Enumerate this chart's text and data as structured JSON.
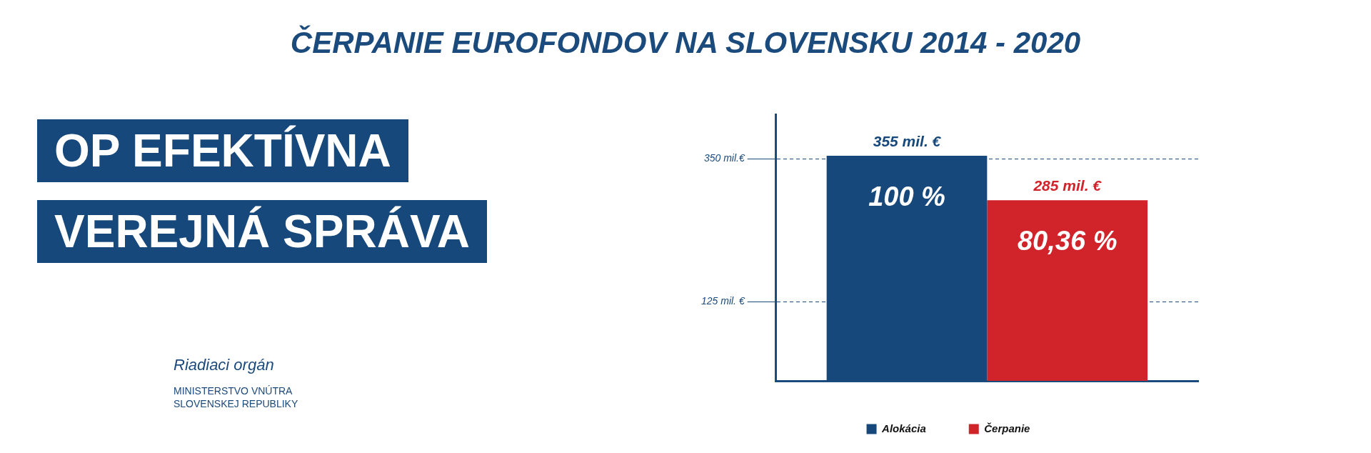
{
  "chart_data": {
    "type": "bar",
    "title": "ČERPANIE EUROFONDOV NA SLOVENSKU 2014 - 2020",
    "subtitle": "OP EFEKTÍVNA VEREJNÁ SPRÁVA",
    "categories": [
      null
    ],
    "series": [
      {
        "name": "Alokácia",
        "color": "#16487b",
        "values": [
          355
        ],
        "value_labels": [
          "355 mil. €"
        ]
      },
      {
        "name": "Čerpanie",
        "color": "#d0232a",
        "values": [
          285
        ],
        "value_labels": [
          "285 mil. €"
        ]
      }
    ],
    "ylim": [
      0,
      420
    ],
    "yticks": [
      {
        "value": 125,
        "label": "125 mil. €"
      },
      {
        "value": 350,
        "label": "350 mil.€"
      }
    ],
    "grid": "y",
    "line_style": "dashed",
    "legend": "bottom",
    "tick_labels": "y",
    "annotations": [
      {
        "text": "100 %",
        "y": 355
      },
      {
        "text": "80,36 %",
        "y": 285
      },
      "Riadiaci orgán",
      "MINISTERSTVO VNÚTRA SLOVENSKEJ REPUBLIKY"
    ]
  }
}
